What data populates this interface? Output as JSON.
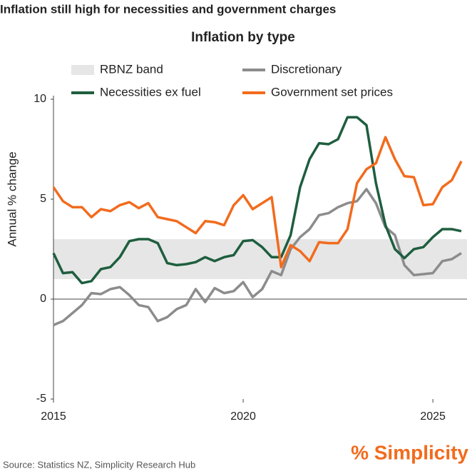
{
  "heading": "Inflation still high for necessities and government charges",
  "source": "Source: Statistics NZ, Simplicity Research Hub",
  "logo": "% Simplicity",
  "chart_data": {
    "type": "line",
    "title": "Inflation by type",
    "y_label": "Annual % change",
    "band": {
      "name": "RBNZ band",
      "range": [
        1,
        3
      ],
      "color": "#e6e6e6"
    },
    "x": [
      2015,
      2015.25,
      2015.5,
      2015.75,
      2016,
      2016.25,
      2016.5,
      2016.75,
      2017,
      2017.25,
      2017.5,
      2017.75,
      2018,
      2018.25,
      2018.5,
      2018.75,
      2019,
      2019.25,
      2019.5,
      2019.75,
      2020,
      2020.25,
      2020.5,
      2020.75,
      2021,
      2021.25,
      2021.5,
      2021.75,
      2022,
      2022.25,
      2022.5,
      2022.75,
      2023,
      2023.25,
      2023.5,
      2023.75,
      2024,
      2024.25,
      2024.5,
      2024.75,
      2025,
      2025.25,
      2025.5,
      2025.75
    ],
    "series": [
      {
        "name": "Discretionary",
        "color": "#8c8c8c",
        "values": [
          -1.3,
          -1.1,
          -0.7,
          -0.3,
          0.3,
          0.25,
          0.5,
          0.6,
          0.2,
          -0.3,
          -0.4,
          -1.1,
          -0.9,
          -0.5,
          -0.3,
          0.5,
          -0.15,
          0.55,
          0.3,
          0.4,
          0.85,
          0.1,
          0.5,
          1.4,
          1.2,
          2.5,
          3.1,
          3.5,
          4.2,
          4.3,
          4.6,
          4.8,
          4.9,
          5.5,
          4.8,
          3.6,
          3.2,
          1.7,
          1.2,
          1.25,
          1.3,
          1.9,
          2.0,
          2.3
        ]
      },
      {
        "name": "Necessities ex fuel",
        "color": "#1e5e3e",
        "values": [
          2.3,
          1.3,
          1.35,
          0.8,
          0.9,
          1.5,
          1.6,
          2.1,
          2.9,
          3.0,
          3.0,
          2.8,
          1.8,
          1.7,
          1.75,
          1.85,
          2.1,
          1.9,
          2.1,
          2.2,
          2.9,
          2.95,
          2.6,
          2.1,
          2.1,
          3.2,
          5.6,
          7.0,
          7.8,
          7.75,
          8.0,
          9.1,
          9.1,
          8.7,
          5.8,
          3.7,
          2.5,
          2.05,
          2.5,
          2.6,
          3.1,
          3.5,
          3.5,
          3.4
        ]
      },
      {
        "name": "Government set prices",
        "color": "#f26b1d",
        "values": [
          5.6,
          4.9,
          4.6,
          4.6,
          4.1,
          4.5,
          4.4,
          4.7,
          4.85,
          4.55,
          4.8,
          4.1,
          4.0,
          3.9,
          3.6,
          3.3,
          3.9,
          3.85,
          3.7,
          4.7,
          5.2,
          4.5,
          4.8,
          5.1,
          1.6,
          2.7,
          2.4,
          1.9,
          2.85,
          2.8,
          2.8,
          3.5,
          5.8,
          6.5,
          6.8,
          8.1,
          7.0,
          6.15,
          6.1,
          4.7,
          4.75,
          5.6,
          5.95,
          6.9
        ]
      }
    ],
    "xlim": [
      2015,
      2025.9
    ],
    "ylim": [
      -5,
      10
    ],
    "xticks": [
      2015,
      2020,
      2025
    ],
    "yticks": [
      -5,
      0,
      5,
      10
    ]
  }
}
